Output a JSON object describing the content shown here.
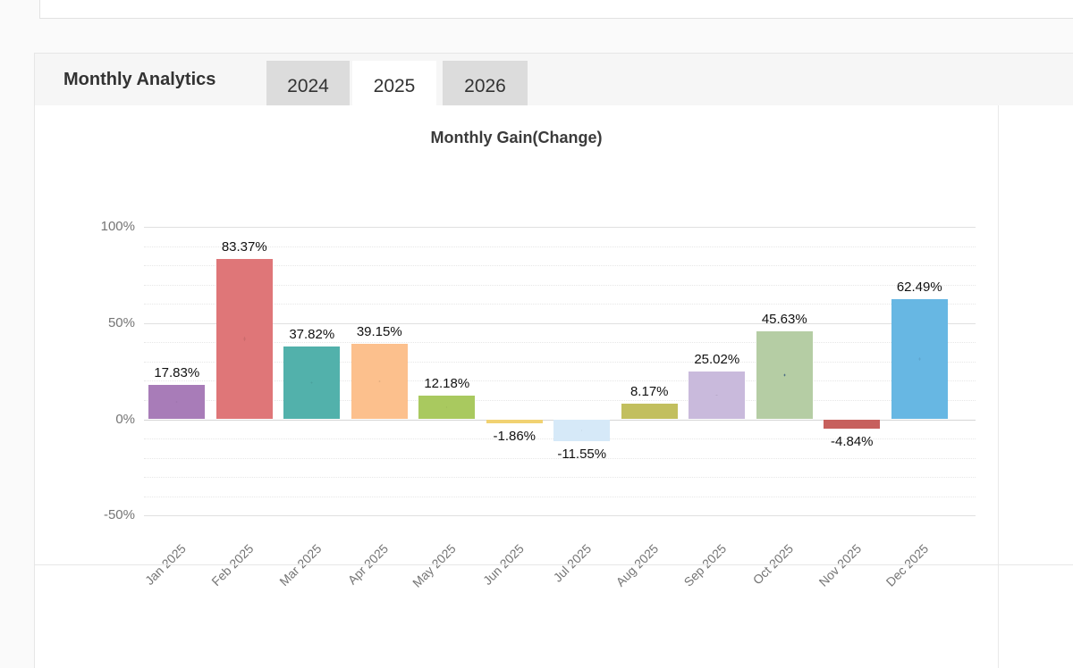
{
  "top_toolbar": {
    "button_color": "#ee7600"
  },
  "panel": {
    "title": "Monthly Analytics",
    "tabs": [
      {
        "label": "2024",
        "active": false
      },
      {
        "label": "2025",
        "active": true
      },
      {
        "label": "2026",
        "active": false
      }
    ]
  },
  "chart_data": {
    "type": "bar",
    "title": "Monthly Gain(Change)",
    "categories": [
      "Jan 2025",
      "Feb 2025",
      "Mar 2025",
      "Apr 2025",
      "May 2025",
      "Jun 2025",
      "Jul 2025",
      "Aug 2025",
      "Sep 2025",
      "Oct 2025",
      "Nov 2025",
      "Dec 2025"
    ],
    "values": [
      17.83,
      83.37,
      37.82,
      39.15,
      12.18,
      -1.86,
      -11.55,
      8.17,
      25.02,
      45.63,
      -4.84,
      62.49
    ],
    "value_labels": [
      "17.83%",
      "83.37%",
      "37.82%",
      "39.15%",
      "12.18%",
      "-1.86%",
      "-11.55%",
      "8.17%",
      "25.02%",
      "45.63%",
      "-4.84%",
      "62.49%"
    ],
    "bar_colors": [
      "#a87cb8",
      "#df7678",
      "#52b1ab",
      "#fcc08d",
      "#a9c95f",
      "#f1d272",
      "#d6e9f8",
      "#c2bf5e",
      "#c9badc",
      "#b5cda4",
      "#c7605d",
      "#67b7e3"
    ],
    "bar_pattern_dot_colors": [
      null,
      null,
      null,
      null,
      null,
      null,
      null,
      null,
      null,
      "#4f6f86",
      null,
      null
    ],
    "xlabel": "",
    "ylabel": "",
    "yticks": {
      "labels": [
        "100%",
        "50%",
        "0%",
        "-50%"
      ],
      "values": [
        100,
        50,
        0,
        -50
      ]
    },
    "minor_grid_values": [
      90,
      80,
      70,
      60,
      40,
      30,
      20,
      10,
      -10,
      -20,
      -30,
      -40
    ],
    "ylim": [
      -50,
      100
    ],
    "grid": true,
    "legend": false
  }
}
